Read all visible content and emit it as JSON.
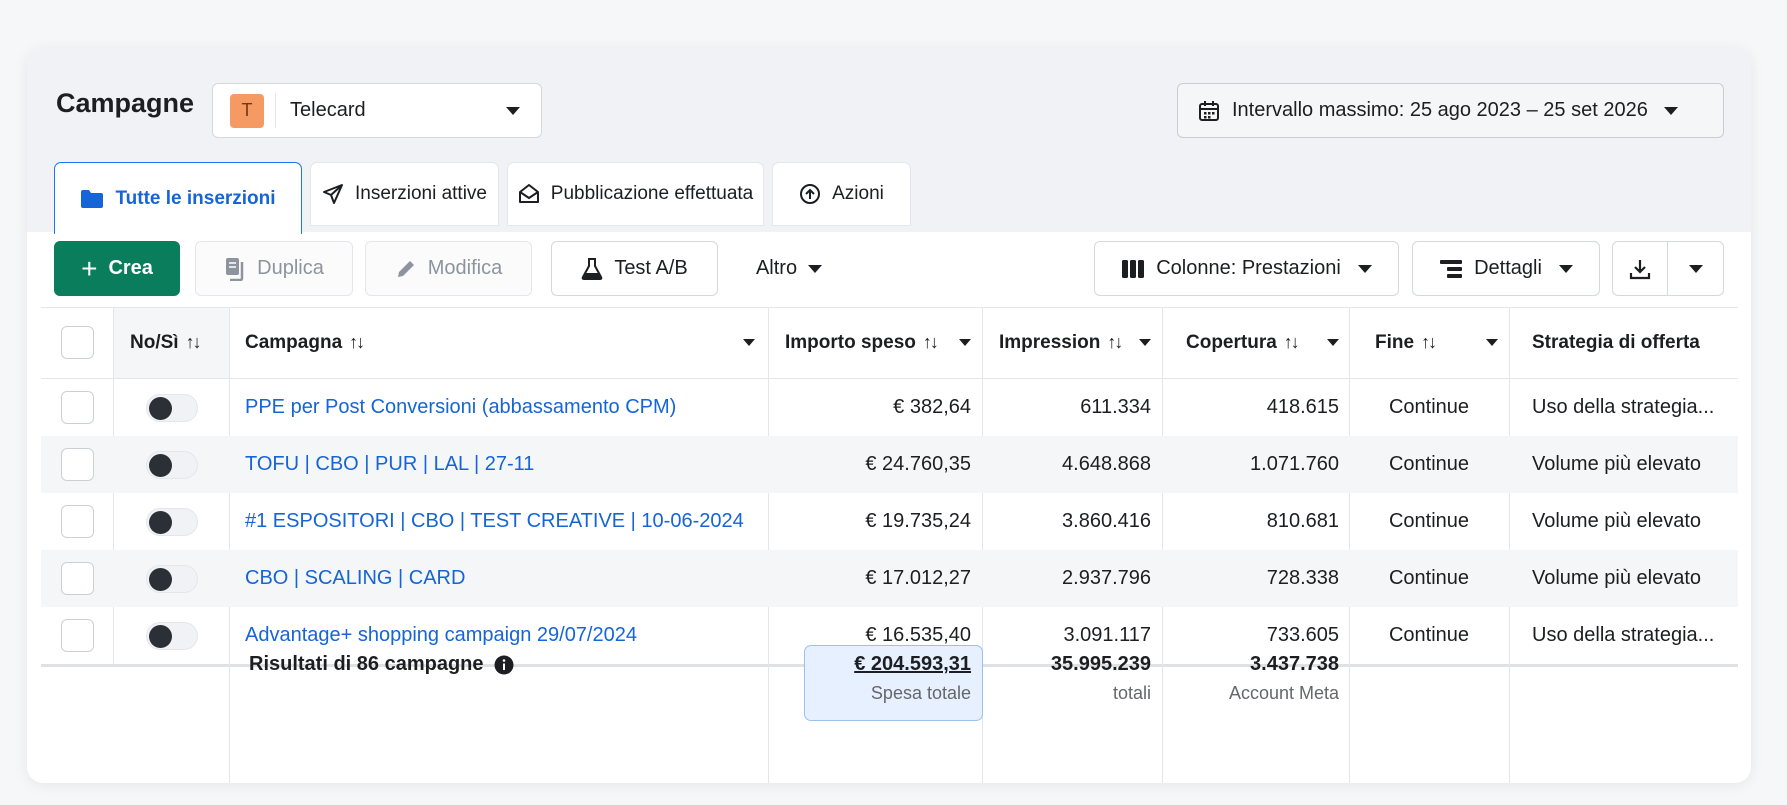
{
  "header": {
    "title": "Campagne",
    "account": {
      "initial": "T",
      "name": "Telecard"
    },
    "date_range": "Intervallo massimo: 25 ago 2023 – 25 set 2026"
  },
  "tabs": [
    {
      "label": "Tutte le inserzioni",
      "icon": "folder-icon",
      "active": true
    },
    {
      "label": "Inserzioni attive",
      "icon": "send-icon"
    },
    {
      "label": "Pubblicazione effettuata",
      "icon": "envelope-open-icon"
    },
    {
      "label": "Azioni",
      "icon": "arrow-up-circle-icon"
    }
  ],
  "toolbar": {
    "create": "Crea",
    "duplicate": "Duplica",
    "edit": "Modifica",
    "ab_test": "Test A/B",
    "more": "Altro",
    "columns": "Colonne: Prestazioni",
    "breakdown": "Dettagli"
  },
  "table": {
    "columns": {
      "toggle": "No/Sì",
      "campaign": "Campagna",
      "spent": "Importo speso",
      "impressions": "Impression",
      "reach": "Copertura",
      "end": "Fine",
      "bid_strategy": "Strategia di offerta"
    },
    "rows": [
      {
        "name": "PPE per Post Conversioni (abbassamento CPM)",
        "spent": "€ 382,64",
        "impressions": "611.334",
        "reach": "418.615",
        "end": "Continue",
        "bid_strategy": "Uso della strategia..."
      },
      {
        "name": "TOFU | CBO | PUR | LAL | 27-11",
        "spent": "€ 24.760,35",
        "impressions": "4.648.868",
        "reach": "1.071.760",
        "end": "Continue",
        "bid_strategy": "Volume più elevato"
      },
      {
        "name": "#1 ESPOSITORI | CBO | TEST CREATIVE | 10-06-2024",
        "spent": "€ 19.735,24",
        "impressions": "3.860.416",
        "reach": "810.681",
        "end": "Continue",
        "bid_strategy": "Volume più elevato"
      },
      {
        "name": "CBO | SCALING | CARD",
        "spent": "€ 17.012,27",
        "impressions": "2.937.796",
        "reach": "728.338",
        "end": "Continue",
        "bid_strategy": "Volume più elevato"
      },
      {
        "name": "Advantage+ shopping campaign 29/07/2024",
        "spent": "€ 16.535,40",
        "impressions": "3.091.117",
        "reach": "733.605",
        "end": "Continue",
        "bid_strategy": "Uso della strategia..."
      }
    ],
    "totals": {
      "label": "Risultati di 86 campagne",
      "spent": "€ 204.593,31",
      "spent_sub": "Spesa totale",
      "impressions": "35.995.239",
      "impressions_sub": "totali",
      "reach": "3.437.738",
      "reach_sub": "Account Meta"
    }
  }
}
